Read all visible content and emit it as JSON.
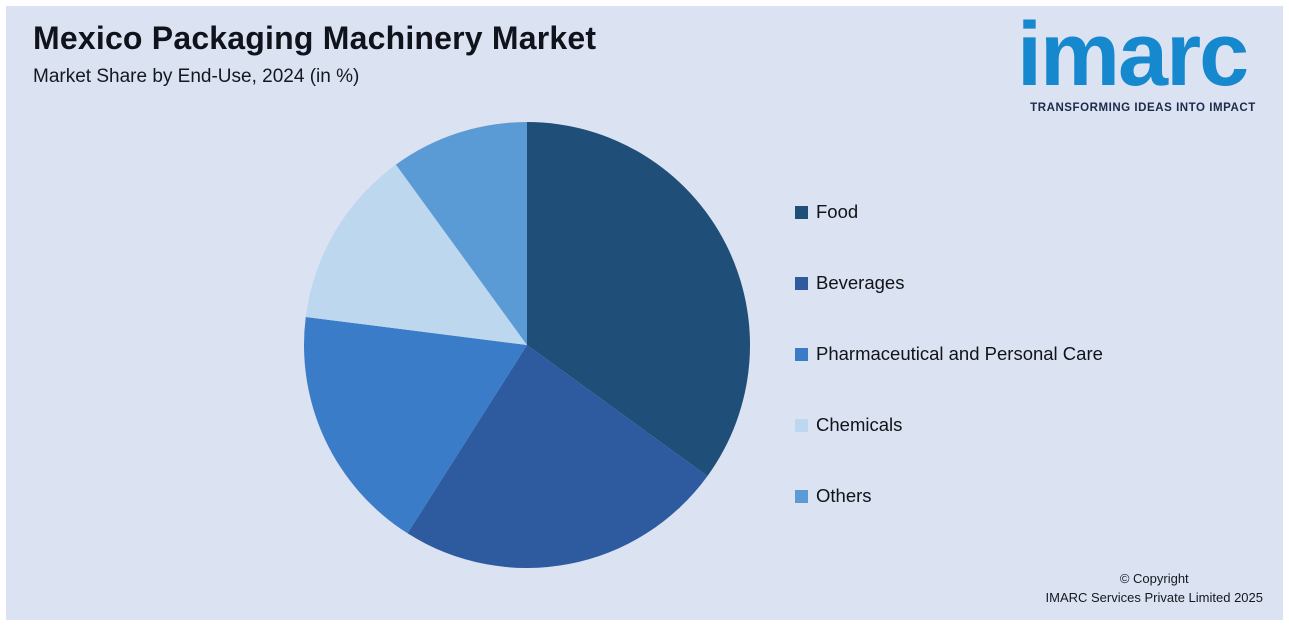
{
  "page": {
    "background_color": "#dbe2f2",
    "frame_color": "#ffffff"
  },
  "header": {
    "title": "Mexico Packaging Machinery Market",
    "subtitle": "Market Share by End-Use, 2024 (in %)"
  },
  "logo": {
    "wordmark": "imarc",
    "tagline": "TRANSFORMING IDEAS INTO IMPACT",
    "brand_color": "#1688ce",
    "tagline_color": "#1c2b4a"
  },
  "chart_data": {
    "type": "pie",
    "title": "Mexico Packaging Machinery Market — Market Share by End-Use, 2024 (in %)",
    "units": "%",
    "start_angle_deg": 0,
    "direction": "clockwise",
    "legend_position": "right",
    "slices": [
      {
        "label": "Food",
        "value": 35,
        "color": "#1F4E79"
      },
      {
        "label": "Beverages",
        "value": 24,
        "color": "#2E5B9F"
      },
      {
        "label": "Pharmaceutical and Personal Care",
        "value": 18,
        "color": "#3A7CC7"
      },
      {
        "label": "Chemicals",
        "value": 13,
        "color": "#BDD7EE"
      },
      {
        "label": "Others",
        "value": 10,
        "color": "#5B9BD5"
      }
    ]
  },
  "footer": {
    "copyright_line1": "© Copyright",
    "copyright_line2": "IMARC Services Private Limited 2025"
  }
}
